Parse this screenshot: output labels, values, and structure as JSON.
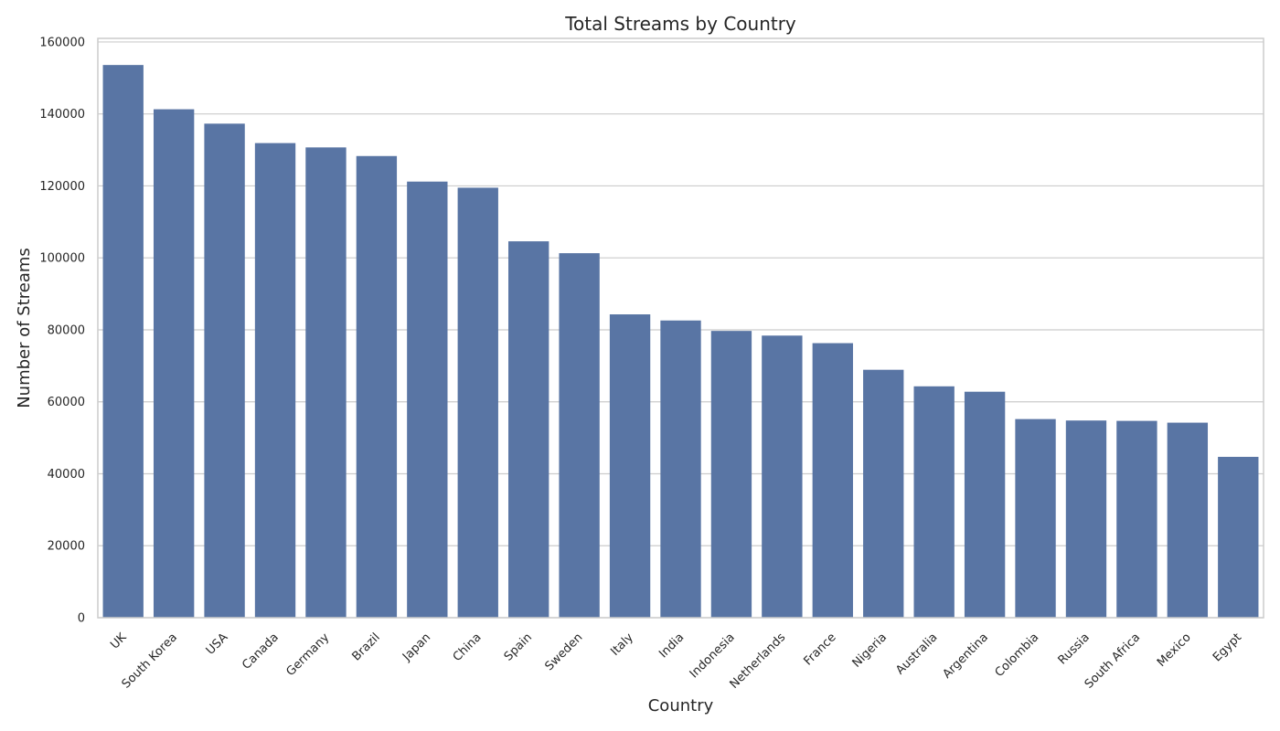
{
  "chart_data": {
    "type": "bar",
    "title": "Total Streams by Country",
    "xlabel": "Country",
    "ylabel": "Number of Streams",
    "categories": [
      "UK",
      "South Korea",
      "USA",
      "Canada",
      "Germany",
      "Brazil",
      "Japan",
      "China",
      "Spain",
      "Sweden",
      "Italy",
      "India",
      "Indonesia",
      "Netherlands",
      "France",
      "Nigeria",
      "Australia",
      "Argentina",
      "Colombia",
      "Russia",
      "South Africa",
      "Mexico",
      "Egypt"
    ],
    "values": [
      153600,
      141300,
      137300,
      131900,
      130700,
      128300,
      121200,
      119500,
      104600,
      101300,
      84300,
      82600,
      79700,
      78400,
      76300,
      68900,
      64300,
      62800,
      55200,
      54800,
      54700,
      54200,
      44700
    ],
    "ylim": [
      0,
      161000
    ],
    "yticks": [
      0,
      20000,
      40000,
      60000,
      80000,
      100000,
      120000,
      140000,
      160000
    ],
    "grid": true,
    "bar_color": "#5975a4",
    "grid_color": "#cccccc",
    "axes_edge_color": "#cccccc"
  }
}
